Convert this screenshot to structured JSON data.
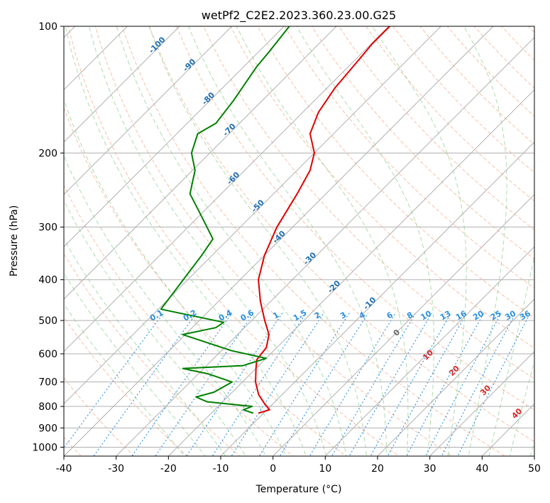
{
  "chart_data": {
    "type": "line",
    "title": "wetPf2_C2E2.2023.360.23.00.G25",
    "xlabel": "Temperature (°C)",
    "ylabel": "Pressure (hPa)",
    "xlim": [
      -40,
      50
    ],
    "ylim": [
      1050,
      100
    ],
    "y_scale": "log",
    "grid": true,
    "x_ticks": [
      "-40",
      "-30",
      "-20",
      "-10",
      "0",
      "10",
      "20",
      "30",
      "40",
      "50"
    ],
    "y_ticks": [
      "100",
      "200",
      "300",
      "400",
      "500",
      "600",
      "700",
      "800",
      "900",
      "1000"
    ],
    "colors": {
      "temperature": "#e00000",
      "dewpoint": "#008000",
      "isotherm_label": "#1f6fb2",
      "mixing_ratio": "#2a8fe0",
      "dry_adiabat": "#f4a582",
      "moist_adiabat": "#7fc97f",
      "moist_label": "#d62728",
      "grid": "#b0b0b0"
    },
    "isotherm_labels": [
      "-100",
      "-90",
      "-80",
      "-70",
      "-60",
      "-50",
      "-40",
      "-30",
      "-20",
      "-10"
    ],
    "mixing_ratio_labels": [
      "0.1",
      "0.2",
      "0.4",
      "0.6",
      "1",
      "1.5",
      "2",
      "3",
      "4",
      "6",
      "8",
      "10",
      "13",
      "16",
      "20",
      "25",
      "30",
      "36"
    ],
    "moist_adiabat_labels": [
      "0",
      "10",
      "20",
      "30",
      "40"
    ],
    "series": [
      {
        "key": "temperature",
        "points": [
          [
            100,
            -59.8
          ],
          [
            110,
            -59.8
          ],
          [
            120,
            -59.3
          ],
          [
            140,
            -58.5
          ],
          [
            160,
            -57.0
          ],
          [
            180,
            -54.5
          ],
          [
            200,
            -50.0
          ],
          [
            220,
            -47.5
          ],
          [
            250,
            -45.5
          ],
          [
            300,
            -43.0
          ],
          [
            350,
            -40.0
          ],
          [
            400,
            -36.5
          ],
          [
            450,
            -32.0
          ],
          [
            500,
            -27.5
          ],
          [
            540,
            -24.0
          ],
          [
            580,
            -22.0
          ],
          [
            620,
            -21.5
          ],
          [
            650,
            -20.0
          ],
          [
            700,
            -17.5
          ],
          [
            750,
            -14.5
          ],
          [
            790,
            -11.5
          ],
          [
            815,
            -9.5
          ],
          [
            830,
            -11.0
          ]
        ]
      },
      {
        "key": "dewpoint",
        "points": [
          [
            100,
            -79.0
          ],
          [
            115,
            -78.0
          ],
          [
            125,
            -77.5
          ],
          [
            150,
            -75.5
          ],
          [
            170,
            -74.5
          ],
          [
            180,
            -76.0
          ],
          [
            200,
            -73.5
          ],
          [
            220,
            -69.5
          ],
          [
            250,
            -66.0
          ],
          [
            280,
            -60.0
          ],
          [
            320,
            -53.0
          ],
          [
            350,
            -52.0
          ],
          [
            470,
            -49.5
          ],
          [
            505,
            -35.0
          ],
          [
            520,
            -35.5
          ],
          [
            540,
            -40.5
          ],
          [
            590,
            -28.0
          ],
          [
            615,
            -20.0
          ],
          [
            640,
            -23.0
          ],
          [
            650,
            -34.0
          ],
          [
            670,
            -28.0
          ],
          [
            700,
            -22.0
          ],
          [
            740,
            -23.5
          ],
          [
            760,
            -26.0
          ],
          [
            780,
            -23.0
          ],
          [
            800,
            -13.5
          ],
          [
            815,
            -14.5
          ],
          [
            830,
            -12.0
          ]
        ]
      }
    ]
  }
}
